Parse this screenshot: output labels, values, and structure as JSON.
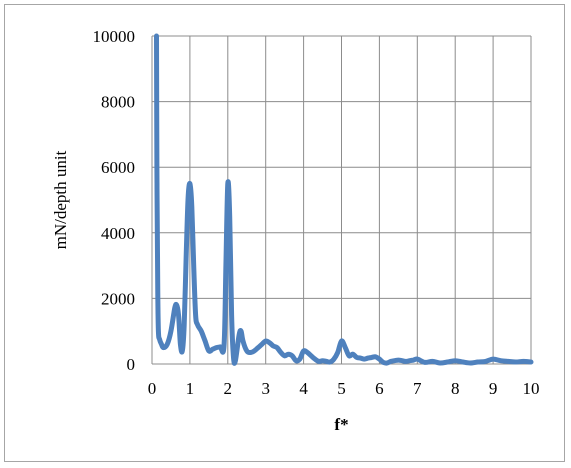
{
  "chart_data": {
    "type": "line",
    "title": "",
    "xlabel": "f*",
    "ylabel": "mN/depth unit",
    "xlim": [
      0,
      10
    ],
    "ylim": [
      0,
      10000
    ],
    "x_ticks": [
      0,
      1,
      2,
      3,
      4,
      5,
      6,
      7,
      8,
      9,
      10
    ],
    "y_ticks": [
      0,
      2000,
      4000,
      6000,
      8000,
      10000
    ],
    "grid": true,
    "legend": "none",
    "series_color": "#4f81bd",
    "series": [
      {
        "x": [
          0.12,
          0.13,
          0.15,
          0.17,
          0.2,
          0.25,
          0.3,
          0.4,
          0.5,
          0.6,
          0.65,
          0.7,
          0.75,
          0.8,
          0.85,
          0.9,
          0.95,
          1.0,
          1.05,
          1.1,
          1.15,
          1.2,
          1.3,
          1.4,
          1.5,
          1.6,
          1.7,
          1.8,
          1.9,
          1.95,
          2.0,
          2.05,
          2.1,
          2.15,
          2.2,
          2.3,
          2.35,
          2.4,
          2.5,
          2.6,
          2.7,
          2.8,
          2.9,
          3.0,
          3.1,
          3.2,
          3.3,
          3.4,
          3.5,
          3.6,
          3.7,
          3.8,
          3.9,
          4.0,
          4.1,
          4.2,
          4.3,
          4.4,
          4.5,
          4.6,
          4.7,
          4.8,
          4.9,
          5.0,
          5.1,
          5.2,
          5.3,
          5.4,
          5.5,
          5.6,
          5.7,
          5.8,
          5.9,
          6.0,
          6.1,
          6.2,
          6.3,
          6.4,
          6.5,
          6.6,
          6.7,
          6.8,
          6.9,
          7.0,
          7.2,
          7.4,
          7.6,
          7.8,
          8.0,
          8.2,
          8.4,
          8.6,
          8.8,
          9.0,
          9.2,
          9.4,
          9.6,
          9.8,
          10.0
        ],
        "y": [
          10000,
          6000,
          2500,
          1000,
          750,
          600,
          500,
          600,
          1000,
          1700,
          1800,
          1500,
          600,
          400,
          1200,
          3200,
          5000,
          5500,
          4800,
          3000,
          1500,
          1200,
          1000,
          700,
          400,
          450,
          500,
          520,
          550,
          3000,
          5500,
          4500,
          1500,
          200,
          100,
          900,
          1000,
          700,
          400,
          350,
          400,
          500,
          600,
          700,
          650,
          550,
          500,
          350,
          250,
          300,
          250,
          100,
          150,
          400,
          350,
          250,
          150,
          80,
          100,
          80,
          60,
          150,
          350,
          700,
          500,
          250,
          300,
          200,
          180,
          150,
          180,
          200,
          220,
          150,
          50,
          30,
          80,
          100,
          120,
          100,
          80,
          100,
          120,
          150,
          50,
          80,
          30,
          60,
          100,
          60,
          30,
          60,
          80,
          150,
          100,
          80,
          60,
          80,
          60
        ]
      }
    ]
  }
}
